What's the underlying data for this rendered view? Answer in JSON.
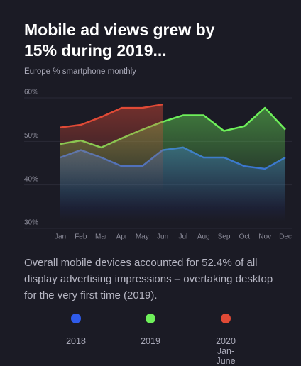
{
  "chart_data": {
    "type": "line",
    "title": "Mobile ad views grew by 15% during 2019...",
    "subtitle": "Europe % smartphone monthly",
    "annotation": "Overall mobile devices accounted for 52.4% of all display advertising impressions – overtaking desktop for the very first time (2019).",
    "categories": [
      "Jan",
      "Feb",
      "Mar",
      "Apr",
      "May",
      "Jun",
      "Jul",
      "Aug",
      "Sep",
      "Oct",
      "Nov",
      "Dec"
    ],
    "series": [
      {
        "name": "2018",
        "color": "#2f5bea",
        "values": [
          45,
          46.7,
          45,
          43,
          43,
          46.7,
          47.3,
          45,
          45,
          43,
          42.4,
          45
        ]
      },
      {
        "name": "2019",
        "color": "#6ef05a",
        "values": [
          48.1,
          48.9,
          47.3,
          49.4,
          51.4,
          53.2,
          54.7,
          54.7,
          51.1,
          52.2,
          56.4,
          51.4
        ]
      },
      {
        "name": "2020 Jan-June",
        "color": "#e04a36",
        "values": [
          51.9,
          52.5,
          54.3,
          56.4,
          56.4,
          57.2,
          null,
          null,
          null,
          null,
          null,
          null
        ]
      }
    ],
    "ylim": [
      30,
      60
    ],
    "yticks": [
      {
        "value": 30,
        "label": "30%"
      },
      {
        "value": 40,
        "label": "40%"
      },
      {
        "value": 50,
        "label": "50%"
      },
      {
        "value": 60,
        "label": "60%"
      }
    ],
    "grid": true
  }
}
